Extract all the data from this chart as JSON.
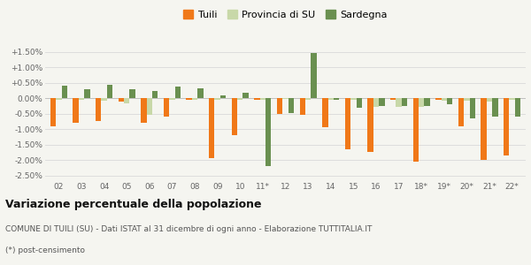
{
  "categories": [
    "02",
    "03",
    "04",
    "05",
    "06",
    "07",
    "08",
    "09",
    "10",
    "11*",
    "12",
    "13",
    "14",
    "15",
    "16",
    "17",
    "18*",
    "19*",
    "20*",
    "21*",
    "22*"
  ],
  "tuili": [
    -0.9,
    -0.8,
    -0.75,
    -0.12,
    -0.8,
    -0.6,
    -0.05,
    -1.95,
    -1.2,
    -0.05,
    -0.5,
    -0.55,
    -0.95,
    -1.65,
    -1.75,
    -0.05,
    -2.05,
    -0.05,
    -0.9,
    -2.0,
    -1.85
  ],
  "provincia_su": [
    -0.05,
    -0.05,
    -0.08,
    -0.18,
    -0.55,
    -0.05,
    -0.05,
    -0.05,
    -0.05,
    -0.05,
    -0.03,
    -0.05,
    -0.05,
    -0.05,
    -0.28,
    -0.28,
    -0.28,
    -0.08,
    -0.08,
    -0.1,
    -0.05
  ],
  "sardegna": [
    0.4,
    0.3,
    0.42,
    0.3,
    0.22,
    0.37,
    0.32,
    0.08,
    0.17,
    -2.2,
    -0.48,
    1.45,
    -0.05,
    -0.3,
    -0.25,
    -0.25,
    -0.25,
    -0.2,
    -0.65,
    -0.6,
    -0.6
  ],
  "tuili_color": "#f07818",
  "provincia_su_color": "#c8d8a8",
  "sardegna_color": "#6a9050",
  "bg_color": "#f5f5f0",
  "grid_color": "#dddddd",
  "title": "Variazione percentuale della popolazione",
  "subtitle": "COMUNE DI TUILI (SU) - Dati ISTAT al 31 dicembre di ogni anno - Elaborazione TUTTITALIA.IT",
  "footnote": "(*) post-censimento",
  "ylim_min": -2.65,
  "ylim_max": 1.8,
  "ytick_vals": [
    -2.5,
    -2.0,
    -1.5,
    -1.0,
    -0.5,
    0.0,
    0.5,
    1.0,
    1.5
  ],
  "ytick_labels": [
    "-2.50%",
    "-2.00%",
    "-1.50%",
    "-1.00%",
    "-0.50%",
    "0.00%",
    "+0.50%",
    "+1.00%",
    "+1.50%"
  ],
  "bar_width": 0.25,
  "legend_labels": [
    "Tuili",
    "Provincia di SU",
    "Sardegna"
  ],
  "legend_colors": [
    "#f07818",
    "#c8d8a8",
    "#6a9050"
  ]
}
